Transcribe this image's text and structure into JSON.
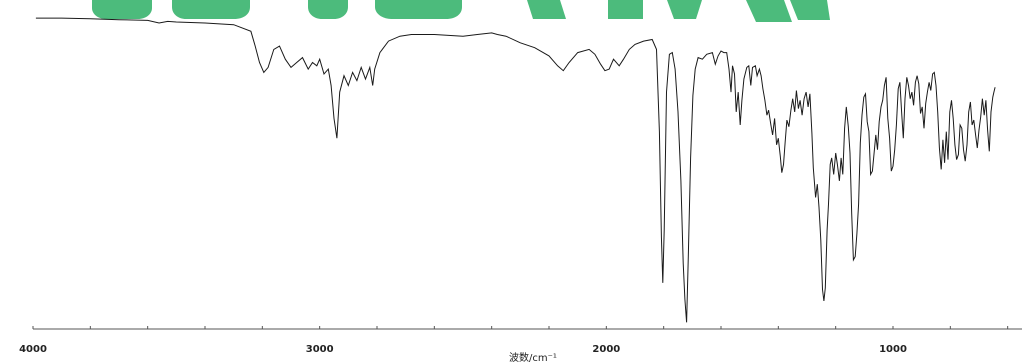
{
  "watermark": {
    "color": "#4cbb7c"
  },
  "chart_data": {
    "type": "line",
    "title": "",
    "xlabel": "波数/cm⁻¹",
    "ylabel": "",
    "x_reversed": true,
    "xlim": [
      4000,
      550
    ],
    "x_ticks": [
      4000,
      3000,
      2000,
      1000
    ],
    "grid": false,
    "series": [
      {
        "line_color": "#1a1a1a",
        "points": [
          [
            3990,
            94.5
          ],
          [
            3900,
            94.5
          ],
          [
            3800,
            94.3
          ],
          [
            3700,
            94.0
          ],
          [
            3600,
            93.8
          ],
          [
            3560,
            93.0
          ],
          [
            3530,
            93.5
          ],
          [
            3500,
            93.3
          ],
          [
            3400,
            93.0
          ],
          [
            3300,
            92.5
          ],
          [
            3240,
            90.5
          ],
          [
            3225,
            86.0
          ],
          [
            3210,
            81.0
          ],
          [
            3195,
            78.0
          ],
          [
            3180,
            79.5
          ],
          [
            3160,
            85.0
          ],
          [
            3140,
            86.0
          ],
          [
            3120,
            82.0
          ],
          [
            3100,
            79.5
          ],
          [
            3080,
            81.0
          ],
          [
            3060,
            82.5
          ],
          [
            3040,
            79.0
          ],
          [
            3025,
            81.0
          ],
          [
            3010,
            80.0
          ],
          [
            3000,
            82.0
          ],
          [
            2985,
            77.5
          ],
          [
            2970,
            79.0
          ],
          [
            2960,
            74.0
          ],
          [
            2950,
            64.0
          ],
          [
            2940,
            58.0
          ],
          [
            2930,
            72.0
          ],
          [
            2915,
            77.0
          ],
          [
            2900,
            74.0
          ],
          [
            2885,
            78.0
          ],
          [
            2870,
            75.5
          ],
          [
            2855,
            79.5
          ],
          [
            2840,
            76.0
          ],
          [
            2825,
            79.5
          ],
          [
            2815,
            74.0
          ],
          [
            2808,
            79.0
          ],
          [
            2790,
            84.0
          ],
          [
            2760,
            87.5
          ],
          [
            2720,
            89.0
          ],
          [
            2680,
            89.5
          ],
          [
            2600,
            89.5
          ],
          [
            2500,
            89.0
          ],
          [
            2450,
            89.5
          ],
          [
            2400,
            90.0
          ],
          [
            2380,
            89.5
          ],
          [
            2350,
            89.0
          ],
          [
            2300,
            87.0
          ],
          [
            2250,
            85.5
          ],
          [
            2200,
            83.0
          ],
          [
            2170,
            80.0
          ],
          [
            2150,
            78.5
          ],
          [
            2130,
            81.0
          ],
          [
            2100,
            84.0
          ],
          [
            2060,
            85.0
          ],
          [
            2040,
            83.5
          ],
          [
            2020,
            80.5
          ],
          [
            2005,
            78.5
          ],
          [
            1990,
            79.0
          ],
          [
            1975,
            82.0
          ],
          [
            1955,
            80.0
          ],
          [
            1940,
            82.0
          ],
          [
            1920,
            85.0
          ],
          [
            1900,
            86.5
          ],
          [
            1870,
            87.5
          ],
          [
            1840,
            88.0
          ],
          [
            1825,
            85.0
          ],
          [
            1815,
            60.0
          ],
          [
            1808,
            28.0
          ],
          [
            1803,
            14.0
          ],
          [
            1798,
            30.0
          ],
          [
            1790,
            72.0
          ],
          [
            1780,
            83.5
          ],
          [
            1770,
            84.0
          ],
          [
            1760,
            79.0
          ],
          [
            1750,
            66.0
          ],
          [
            1740,
            45.0
          ],
          [
            1732,
            20.0
          ],
          [
            1726,
            9.0
          ],
          [
            1720,
            2.0
          ],
          [
            1714,
            22.0
          ],
          [
            1706,
            52.0
          ],
          [
            1698,
            71.0
          ],
          [
            1690,
            79.0
          ],
          [
            1680,
            82.5
          ],
          [
            1665,
            82.0
          ],
          [
            1650,
            83.5
          ],
          [
            1630,
            84.0
          ],
          [
            1620,
            80.5
          ],
          [
            1610,
            83.0
          ],
          [
            1600,
            84.5
          ],
          [
            1590,
            84.0
          ],
          [
            1580,
            84.0
          ],
          [
            1572,
            79.0
          ],
          [
            1565,
            72.0
          ],
          [
            1560,
            80.0
          ],
          [
            1553,
            77.5
          ],
          [
            1547,
            66.0
          ],
          [
            1540,
            72.0
          ],
          [
            1533,
            62.0
          ],
          [
            1527,
            69.5
          ],
          [
            1520,
            76.0
          ],
          [
            1510,
            79.5
          ],
          [
            1503,
            80.0
          ],
          [
            1496,
            74.0
          ],
          [
            1490,
            79.5
          ],
          [
            1480,
            80.0
          ],
          [
            1474,
            77.0
          ],
          [
            1466,
            79.0
          ],
          [
            1460,
            77.0
          ],
          [
            1454,
            73.0
          ],
          [
            1447,
            69.5
          ],
          [
            1440,
            65.0
          ],
          [
            1434,
            66.5
          ],
          [
            1426,
            62.0
          ],
          [
            1420,
            59.0
          ],
          [
            1413,
            64.0
          ],
          [
            1406,
            56.0
          ],
          [
            1400,
            58.0
          ],
          [
            1393,
            52.5
          ],
          [
            1388,
            47.5
          ],
          [
            1382,
            50.0
          ],
          [
            1376,
            57.0
          ],
          [
            1370,
            63.5
          ],
          [
            1363,
            61.5
          ],
          [
            1356,
            66.5
          ],
          [
            1350,
            70.0
          ],
          [
            1343,
            66.0
          ],
          [
            1337,
            72.5
          ],
          [
            1330,
            67.0
          ],
          [
            1324,
            69.5
          ],
          [
            1317,
            65.0
          ],
          [
            1310,
            70.0
          ],
          [
            1303,
            72.0
          ],
          [
            1296,
            67.5
          ],
          [
            1290,
            71.5
          ],
          [
            1283,
            59.5
          ],
          [
            1278,
            49.0
          ],
          [
            1270,
            40.0
          ],
          [
            1264,
            44.0
          ],
          [
            1258,
            37.0
          ],
          [
            1252,
            27.0
          ],
          [
            1246,
            12.0
          ],
          [
            1241,
            8.5
          ],
          [
            1236,
            12.5
          ],
          [
            1230,
            30.0
          ],
          [
            1225,
            38.0
          ],
          [
            1219,
            50.0
          ],
          [
            1214,
            52.0
          ],
          [
            1207,
            47.0
          ],
          [
            1200,
            53.5
          ],
          [
            1194,
            50.0
          ],
          [
            1187,
            45.0
          ],
          [
            1181,
            52.0
          ],
          [
            1175,
            47.0
          ],
          [
            1169,
            61.0
          ],
          [
            1163,
            67.5
          ],
          [
            1156,
            61.5
          ],
          [
            1150,
            53.5
          ],
          [
            1144,
            35.0
          ],
          [
            1138,
            21.0
          ],
          [
            1132,
            22.0
          ],
          [
            1126,
            29.0
          ],
          [
            1120,
            38.0
          ],
          [
            1114,
            56.5
          ],
          [
            1108,
            65.0
          ],
          [
            1102,
            70.5
          ],
          [
            1096,
            71.5
          ],
          [
            1090,
            63.0
          ],
          [
            1084,
            60.0
          ],
          [
            1078,
            47.0
          ],
          [
            1072,
            48.0
          ],
          [
            1066,
            53.5
          ],
          [
            1060,
            59.0
          ],
          [
            1054,
            54.5
          ],
          [
            1048,
            63.0
          ],
          [
            1042,
            67.5
          ],
          [
            1036,
            69.5
          ],
          [
            1030,
            74.0
          ],
          [
            1024,
            76.5
          ],
          [
            1018,
            64.0
          ],
          [
            1012,
            58.0
          ],
          [
            1006,
            48.0
          ],
          [
            1000,
            49.5
          ],
          [
            994,
            54.5
          ],
          [
            988,
            62.0
          ],
          [
            982,
            73.0
          ],
          [
            976,
            75.0
          ],
          [
            970,
            66.0
          ],
          [
            964,
            58.0
          ],
          [
            958,
            70.0
          ],
          [
            952,
            76.5
          ],
          [
            946,
            74.0
          ],
          [
            940,
            70.0
          ],
          [
            934,
            72.0
          ],
          [
            928,
            68.0
          ],
          [
            922,
            75.0
          ],
          [
            916,
            77.0
          ],
          [
            910,
            74.5
          ],
          [
            904,
            65.5
          ],
          [
            898,
            67.5
          ],
          [
            892,
            61.0
          ],
          [
            886,
            68.5
          ],
          [
            880,
            72.0
          ],
          [
            874,
            75.0
          ],
          [
            868,
            72.5
          ],
          [
            862,
            77.5
          ],
          [
            856,
            78.0
          ],
          [
            850,
            74.0
          ],
          [
            844,
            66.0
          ],
          [
            838,
            55.0
          ],
          [
            832,
            48.5
          ],
          [
            826,
            57.5
          ],
          [
            820,
            50.5
          ],
          [
            814,
            60.0
          ],
          [
            808,
            51.5
          ],
          [
            802,
            66.0
          ],
          [
            796,
            69.5
          ],
          [
            790,
            64.0
          ],
          [
            784,
            56.0
          ],
          [
            778,
            51.5
          ],
          [
            772,
            53.0
          ],
          [
            766,
            62.0
          ],
          [
            760,
            61.0
          ],
          [
            754,
            54.5
          ],
          [
            748,
            51.0
          ],
          [
            742,
            56.0
          ],
          [
            736,
            66.0
          ],
          [
            730,
            69.0
          ],
          [
            724,
            62.0
          ],
          [
            718,
            63.5
          ],
          [
            712,
            59.0
          ],
          [
            706,
            55.0
          ],
          [
            700,
            60.5
          ],
          [
            694,
            64.5
          ],
          [
            688,
            70.0
          ],
          [
            682,
            65.0
          ],
          [
            676,
            69.5
          ],
          [
            670,
            60.5
          ],
          [
            664,
            54.0
          ],
          [
            658,
            66.0
          ],
          [
            652,
            70.5
          ],
          [
            648,
            72.0
          ],
          [
            644,
            73.5
          ]
        ]
      }
    ]
  }
}
